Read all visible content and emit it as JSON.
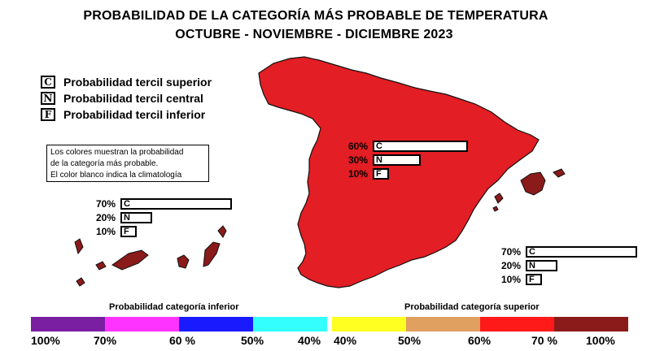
{
  "title": {
    "line1": "PROBABILIDAD DE LA CATEGORÍA MÁS PROBABLE DE TEMPERATURA",
    "line2": "OCTUBRE - NOVIEMBRE - DICIEMBRE 2023"
  },
  "legend": [
    {
      "letter": "C",
      "text": "Probabilidad  tercil superior"
    },
    {
      "letter": "N",
      "text": "Probabilidad  tercil central"
    },
    {
      "letter": "F",
      "text": "Probabilidad  tercil inferior"
    }
  ],
  "note": {
    "line1": "Los colores muestran la probabilidad",
    "line2": "de la categoría más probable.",
    "line3": "El color blanco indica la climatología"
  },
  "regions": {
    "peninsula": {
      "color": "#e31e24",
      "bars": [
        {
          "pct": "60%",
          "letter": "C",
          "value": 60
        },
        {
          "pct": "30%",
          "letter": "N",
          "value": 30
        },
        {
          "pct": "10%",
          "letter": "F",
          "value": 10
        }
      ]
    },
    "canarias": {
      "color": "#8b1a1a",
      "bars": [
        {
          "pct": "70%",
          "letter": "C",
          "value": 70
        },
        {
          "pct": "20%",
          "letter": "N",
          "value": 20
        },
        {
          "pct": "10%",
          "letter": "F",
          "value": 10
        }
      ]
    },
    "baleares": {
      "color": "#8b1a1a",
      "bars": [
        {
          "pct": "70%",
          "letter": "C",
          "value": 70
        },
        {
          "pct": "20%",
          "letter": "N",
          "value": 20
        },
        {
          "pct": "10%",
          "letter": "F",
          "value": 10
        }
      ]
    }
  },
  "scale": {
    "inferior_title": "Probabilidad categoría inferior",
    "superior_title": "Probabilidad categoría superior",
    "inferior_colors": [
      "#7b1fa2",
      "#ff33ff",
      "#1a1aff",
      "#33ffff"
    ],
    "superior_colors": [
      "#ffff22",
      "#e0a060",
      "#ff1a1a",
      "#8b1a1a"
    ],
    "inferior_ticks": [
      "100%",
      "70%",
      "60 %",
      "50%",
      "40%"
    ],
    "superior_ticks": [
      "40%",
      "50%",
      "60%",
      "70 %",
      "100%"
    ]
  }
}
